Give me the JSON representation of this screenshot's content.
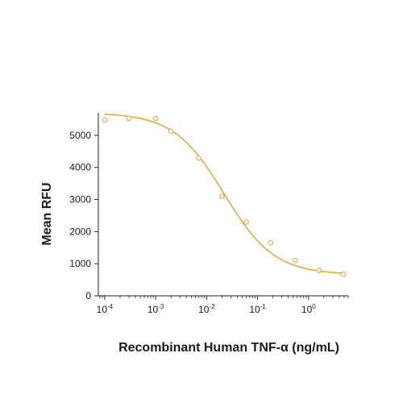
{
  "chart_data": {
    "type": "scatter",
    "title": "",
    "xlabel": "Recombinant Human TNF-α (ng/mL)",
    "ylabel": "Mean RFU",
    "xscale": "log",
    "xlim": [
      7.5e-05,
      6
    ],
    "ylim": [
      0,
      5700
    ],
    "x_ticks": [
      {
        "value": 0.0001,
        "base": "10",
        "exp": "-4"
      },
      {
        "value": 0.001,
        "base": "10",
        "exp": "-3"
      },
      {
        "value": 0.01,
        "base": "10",
        "exp": "-2"
      },
      {
        "value": 0.1,
        "base": "10",
        "exp": "-1"
      },
      {
        "value": 1,
        "base": "10",
        "exp": "0"
      }
    ],
    "y_ticks": [
      {
        "value": 0,
        "label": "0"
      },
      {
        "value": 1000,
        "label": "1000"
      },
      {
        "value": 2000,
        "label": "2000"
      },
      {
        "value": 3000,
        "label": "3000"
      },
      {
        "value": 4000,
        "label": "4000"
      },
      {
        "value": 5000,
        "label": "5000"
      }
    ],
    "grid": false,
    "legend": "none",
    "series": [
      {
        "x": [
          0.0001,
          0.0003,
          0.001,
          0.002,
          0.007,
          0.02,
          0.06,
          0.18,
          0.55,
          1.6,
          4.8
        ],
        "y": [
          5480,
          5530,
          5530,
          5130,
          4290,
          3100,
          2300,
          1650,
          1100,
          790,
          670
        ],
        "marker": "open-circle",
        "color": "#e8a33c"
      }
    ],
    "fit_curve": {
      "model": "4PL",
      "top": 5700,
      "bottom": 660,
      "ec50": 0.022,
      "hill": 0.88,
      "color": "#e8a33c"
    }
  }
}
